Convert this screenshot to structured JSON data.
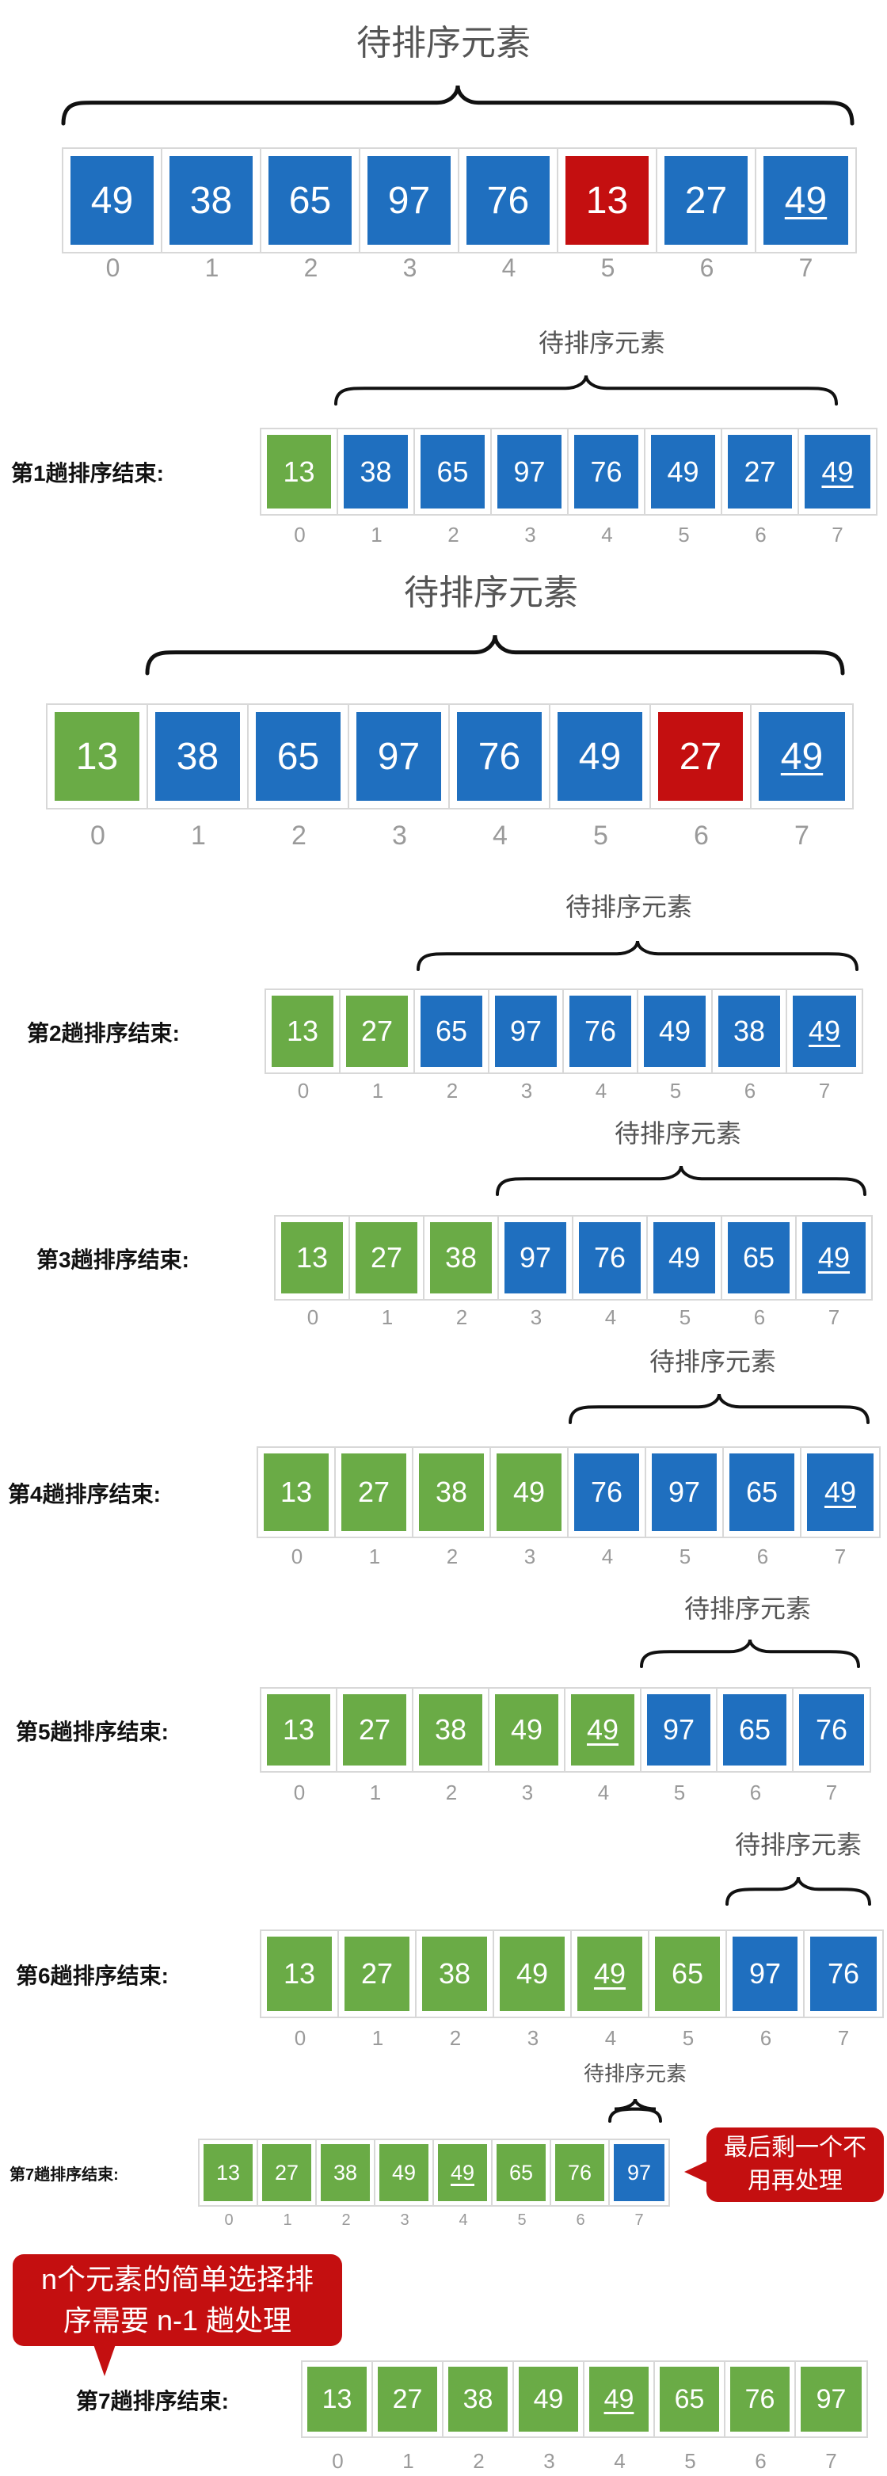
{
  "title_text": "待排序元素",
  "rows": [
    {
      "label": "",
      "cells": [
        {
          "v": "49",
          "c": "b"
        },
        {
          "v": "38",
          "c": "b"
        },
        {
          "v": "65",
          "c": "b"
        },
        {
          "v": "97",
          "c": "b"
        },
        {
          "v": "76",
          "c": "b"
        },
        {
          "v": "13",
          "c": "r"
        },
        {
          "v": "27",
          "c": "b"
        },
        {
          "v": "49",
          "c": "b",
          "u": true
        }
      ],
      "indices": [
        "0",
        "1",
        "2",
        "3",
        "4",
        "5",
        "6",
        "7"
      ]
    },
    {
      "label": "第1趟排序结束:",
      "cells": [
        {
          "v": "13",
          "c": "g"
        },
        {
          "v": "38",
          "c": "b"
        },
        {
          "v": "65",
          "c": "b"
        },
        {
          "v": "97",
          "c": "b"
        },
        {
          "v": "76",
          "c": "b"
        },
        {
          "v": "49",
          "c": "b"
        },
        {
          "v": "27",
          "c": "b"
        },
        {
          "v": "49",
          "c": "b",
          "u": true
        }
      ],
      "indices": [
        "0",
        "1",
        "2",
        "3",
        "4",
        "5",
        "6",
        "7"
      ]
    },
    {
      "label": "",
      "cells": [
        {
          "v": "13",
          "c": "g"
        },
        {
          "v": "38",
          "c": "b"
        },
        {
          "v": "65",
          "c": "b"
        },
        {
          "v": "97",
          "c": "b"
        },
        {
          "v": "76",
          "c": "b"
        },
        {
          "v": "49",
          "c": "b"
        },
        {
          "v": "27",
          "c": "r"
        },
        {
          "v": "49",
          "c": "b",
          "u": true
        }
      ],
      "indices": [
        "0",
        "1",
        "2",
        "3",
        "4",
        "5",
        "6",
        "7"
      ]
    },
    {
      "label": "第2趟排序结束:",
      "cells": [
        {
          "v": "13",
          "c": "g"
        },
        {
          "v": "27",
          "c": "g"
        },
        {
          "v": "65",
          "c": "b"
        },
        {
          "v": "97",
          "c": "b"
        },
        {
          "v": "76",
          "c": "b"
        },
        {
          "v": "49",
          "c": "b"
        },
        {
          "v": "38",
          "c": "b"
        },
        {
          "v": "49",
          "c": "b",
          "u": true
        }
      ],
      "indices": [
        "0",
        "1",
        "2",
        "3",
        "4",
        "5",
        "6",
        "7"
      ]
    },
    {
      "label": "第3趟排序结束:",
      "cells": [
        {
          "v": "13",
          "c": "g"
        },
        {
          "v": "27",
          "c": "g"
        },
        {
          "v": "38",
          "c": "g"
        },
        {
          "v": "97",
          "c": "b"
        },
        {
          "v": "76",
          "c": "b"
        },
        {
          "v": "49",
          "c": "b"
        },
        {
          "v": "65",
          "c": "b"
        },
        {
          "v": "49",
          "c": "b",
          "u": true
        }
      ],
      "indices": [
        "0",
        "1",
        "2",
        "3",
        "4",
        "5",
        "6",
        "7"
      ]
    },
    {
      "label": "第4趟排序结束:",
      "cells": [
        {
          "v": "13",
          "c": "g"
        },
        {
          "v": "27",
          "c": "g"
        },
        {
          "v": "38",
          "c": "g"
        },
        {
          "v": "49",
          "c": "g"
        },
        {
          "v": "76",
          "c": "b"
        },
        {
          "v": "97",
          "c": "b"
        },
        {
          "v": "65",
          "c": "b"
        },
        {
          "v": "49",
          "c": "b",
          "u": true
        }
      ],
      "indices": [
        "0",
        "1",
        "2",
        "3",
        "4",
        "5",
        "6",
        "7"
      ]
    },
    {
      "label": "第5趟排序结束:",
      "cells": [
        {
          "v": "13",
          "c": "g"
        },
        {
          "v": "27",
          "c": "g"
        },
        {
          "v": "38",
          "c": "g"
        },
        {
          "v": "49",
          "c": "g"
        },
        {
          "v": "49",
          "c": "g",
          "u": true
        },
        {
          "v": "97",
          "c": "b"
        },
        {
          "v": "65",
          "c": "b"
        },
        {
          "v": "76",
          "c": "b"
        }
      ],
      "indices": [
        "0",
        "1",
        "2",
        "3",
        "4",
        "5",
        "6",
        "7"
      ]
    },
    {
      "label": "第6趟排序结束:",
      "cells": [
        {
          "v": "13",
          "c": "g"
        },
        {
          "v": "27",
          "c": "g"
        },
        {
          "v": "38",
          "c": "g"
        },
        {
          "v": "49",
          "c": "g"
        },
        {
          "v": "49",
          "c": "g",
          "u": true
        },
        {
          "v": "65",
          "c": "g"
        },
        {
          "v": "97",
          "c": "b"
        },
        {
          "v": "76",
          "c": "b"
        }
      ],
      "indices": [
        "0",
        "1",
        "2",
        "3",
        "4",
        "5",
        "6",
        "7"
      ]
    },
    {
      "label": "第7趟排序结束:",
      "cells": [
        {
          "v": "13",
          "c": "g"
        },
        {
          "v": "27",
          "c": "g"
        },
        {
          "v": "38",
          "c": "g"
        },
        {
          "v": "49",
          "c": "g"
        },
        {
          "v": "49",
          "c": "g",
          "u": true
        },
        {
          "v": "65",
          "c": "g"
        },
        {
          "v": "76",
          "c": "g"
        },
        {
          "v": "97",
          "c": "b"
        }
      ],
      "indices": [
        "0",
        "1",
        "2",
        "3",
        "4",
        "5",
        "6",
        "7"
      ]
    },
    {
      "label": "第7趟排序结束:",
      "cells": [
        {
          "v": "13",
          "c": "g"
        },
        {
          "v": "27",
          "c": "g"
        },
        {
          "v": "38",
          "c": "g"
        },
        {
          "v": "49",
          "c": "g"
        },
        {
          "v": "49",
          "c": "g",
          "u": true
        },
        {
          "v": "65",
          "c": "g"
        },
        {
          "v": "76",
          "c": "g"
        },
        {
          "v": "97",
          "c": "g"
        }
      ],
      "indices": [
        "0",
        "1",
        "2",
        "3",
        "4",
        "5",
        "6",
        "7"
      ]
    }
  ],
  "bubble_last": "最后剩一个不用再处理",
  "bubble_summary": "n个元素的简单选择排序需要 n-1 趟处理",
  "colors": {
    "blue": "#1f6fbf",
    "green": "#6aab46",
    "red": "#c40f10"
  }
}
